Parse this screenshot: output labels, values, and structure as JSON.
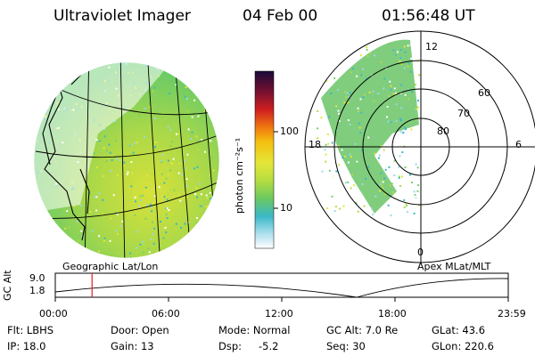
{
  "header": {
    "instrument": "Ultraviolet Imager",
    "date": "04 Feb 00",
    "time": "01:56:48 UT"
  },
  "left_panel": {
    "caption": "Geographic Lat/Lon"
  },
  "right_panel": {
    "caption": "Apex MLat/MLT",
    "mlt_labels": {
      "top": "12",
      "left": "18",
      "right": "6",
      "bottom": "0"
    },
    "lat_labels": [
      "60",
      "70",
      "80"
    ]
  },
  "colorbar": {
    "unit_label": "photon cm⁻²s⁻¹",
    "ticks": [
      "100",
      "10"
    ],
    "scale": "log"
  },
  "altitude_plot": {
    "ylabel": "GC Alt",
    "yticks": [
      "9.0",
      "1.8"
    ],
    "xticks": [
      "00:00",
      "06:00",
      "12:00",
      "18:00",
      "23:59"
    ],
    "marker_time": "01:56:48",
    "marker_color": "#e02020"
  },
  "info": {
    "flt": "Flt: LBHS",
    "ip": "IP: 18.0",
    "door": "Door: Open",
    "gain": "Gain: 13",
    "mode": "Mode: Normal",
    "dsp_label": "Dsp:",
    "dsp_value": "-5.2",
    "gcalt": "GC Alt: 7.0 Re",
    "seq": "Seq: 30",
    "glat": "GLat:  43.6",
    "glon": "GLon: 220.6"
  }
}
